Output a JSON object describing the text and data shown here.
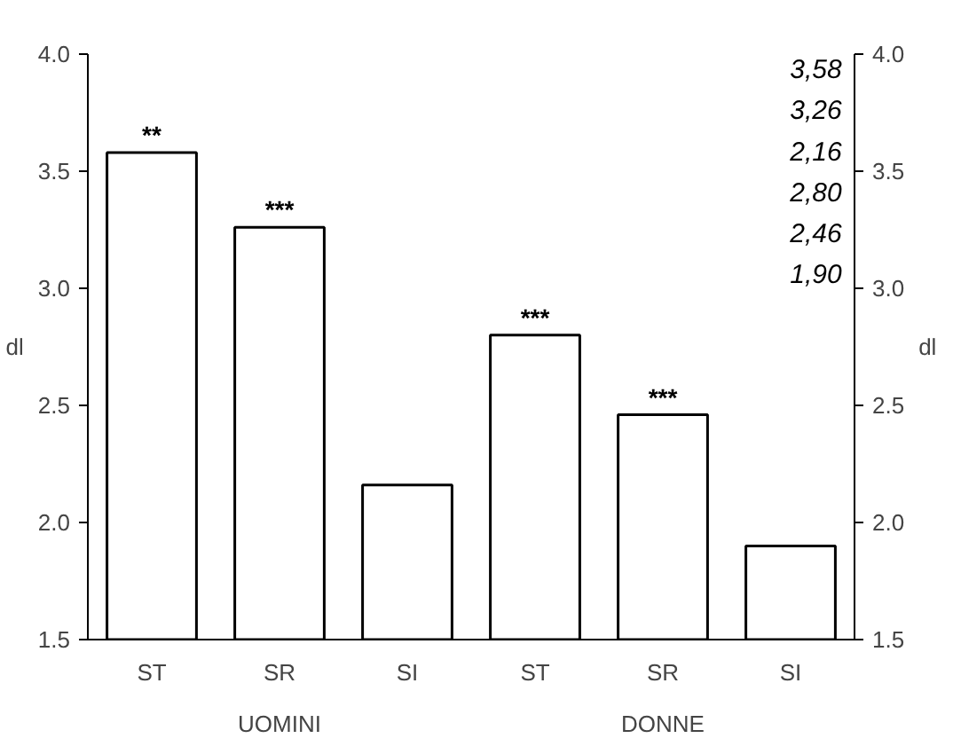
{
  "chart_data": {
    "type": "bar",
    "ylabel": "dl",
    "y2label": "dl",
    "categories": [
      "ST",
      "SR",
      "SI",
      "ST",
      "SR",
      "SI"
    ],
    "values": [
      3.58,
      3.26,
      2.16,
      2.8,
      2.46,
      1.9
    ],
    "color": "#ffffff",
    "value_labels": [
      "**",
      "***",
      null,
      "***",
      "***",
      null
    ],
    "ylim": [
      1.5,
      4.0
    ],
    "yticks": [
      {
        "value": 1.5,
        "label": "1.5"
      },
      {
        "value": 2.0,
        "label": "2.0"
      },
      {
        "value": 2.5,
        "label": "2.5"
      },
      {
        "value": 3.0,
        "label": "3.0"
      },
      {
        "value": 3.5,
        "label": "3.5"
      },
      {
        "value": 4.0,
        "label": "4.0"
      }
    ],
    "y2lim": [
      1.5,
      4.0
    ],
    "y2ticks": [
      {
        "value": 1.5,
        "label": "1.5"
      },
      {
        "value": 2.0,
        "label": "2.0"
      },
      {
        "value": 2.5,
        "label": "2.5"
      },
      {
        "value": 3.0,
        "label": "3.0"
      },
      {
        "value": 3.5,
        "label": "3.5"
      },
      {
        "value": 4.0,
        "label": "4.0"
      }
    ],
    "annotations": [
      "3,58",
      "3,26",
      "2,16",
      "2,80",
      "2,46",
      "1,90",
      "UOMINI",
      "DONNE"
    ]
  }
}
